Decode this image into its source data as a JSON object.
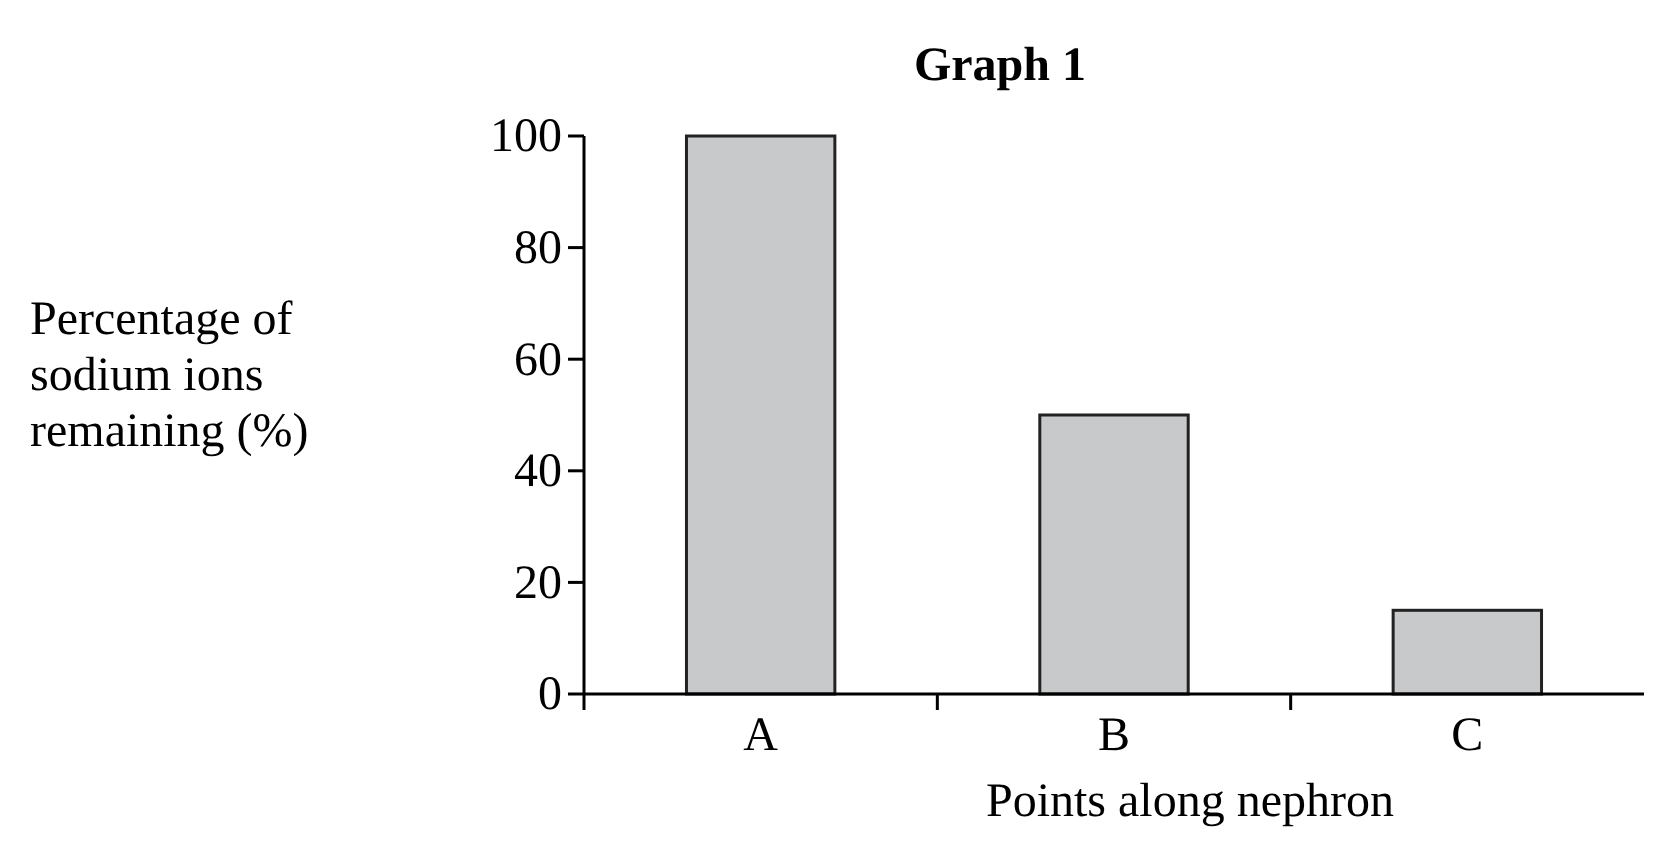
{
  "chart_data": {
    "type": "bar",
    "title": "Graph 1",
    "xlabel": "Points along nephron",
    "ylabel": "Percentage of sodium ions remaining (%)",
    "categories": [
      "A",
      "B",
      "C"
    ],
    "values": [
      100,
      50,
      15
    ],
    "color": "#c8c9cb",
    "ylim": [
      0,
      100
    ],
    "yticks": [
      0,
      20,
      40,
      60,
      80,
      100
    ],
    "grid": false
  }
}
